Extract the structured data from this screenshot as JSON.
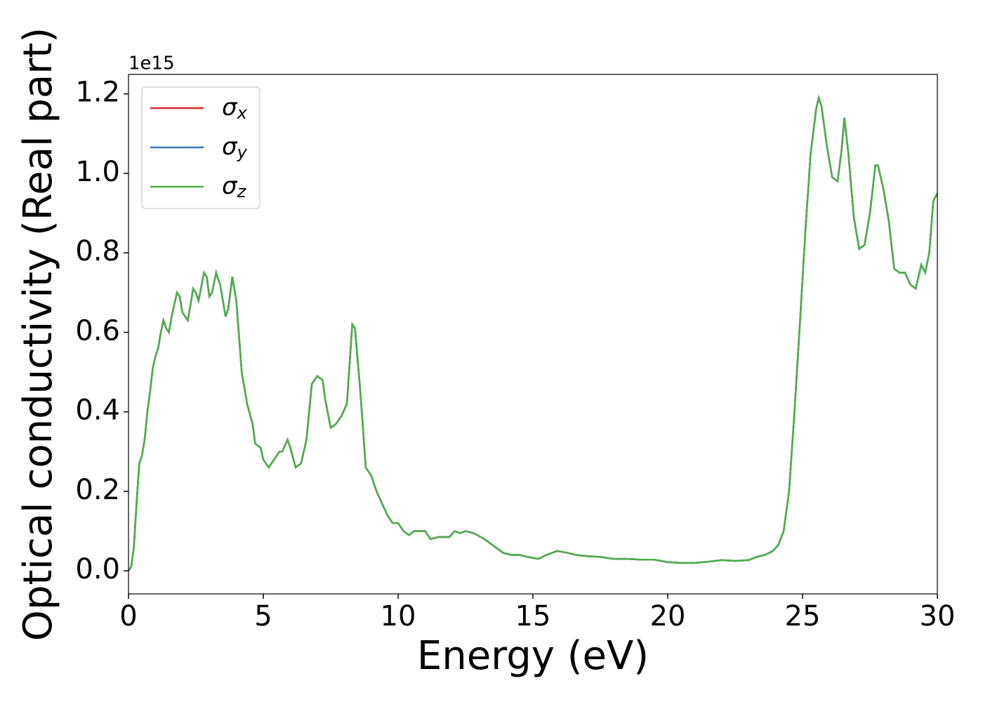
{
  "chart_data": {
    "type": "line",
    "x_label": "Energy (eV)",
    "y_label": "Optical conductivity (Real part)",
    "y_offset_label": "1e15",
    "x": [
      0,
      0.1,
      0.2,
      0.3,
      0.4,
      0.5,
      0.6,
      0.7,
      0.8,
      0.9,
      1.0,
      1.1,
      1.2,
      1.3,
      1.4,
      1.5,
      1.6,
      1.8,
      1.9,
      2.0,
      2.2,
      2.4,
      2.5,
      2.6,
      2.8,
      2.9,
      3.0,
      3.1,
      3.25,
      3.4,
      3.6,
      3.7,
      3.85,
      4.0,
      4.2,
      4.4,
      4.6,
      4.7,
      4.9,
      5.0,
      5.2,
      5.4,
      5.6,
      5.7,
      5.9,
      6.0,
      6.2,
      6.4,
      6.6,
      6.8,
      7.0,
      7.2,
      7.3,
      7.5,
      7.7,
      7.9,
      8.1,
      8.3,
      8.4,
      8.6,
      8.8,
      9.0,
      9.2,
      9.4,
      9.6,
      9.8,
      10.0,
      10.2,
      10.4,
      10.6,
      10.8,
      11.0,
      11.2,
      11.5,
      11.9,
      12.1,
      12.3,
      12.5,
      12.8,
      13.2,
      13.6,
      13.9,
      14.2,
      14.5,
      14.8,
      15.2,
      15.5,
      15.9,
      16.3,
      16.6,
      17.0,
      17.5,
      18.0,
      18.5,
      19.0,
      19.5,
      20.0,
      20.5,
      21.0,
      21.5,
      22.0,
      22.5,
      23.0,
      23.3,
      23.6,
      23.9,
      24.1,
      24.3,
      24.5,
      24.7,
      24.9,
      25.1,
      25.3,
      25.5,
      25.6,
      25.7,
      25.9,
      26.1,
      26.3,
      26.45,
      26.55,
      26.7,
      26.9,
      27.1,
      27.3,
      27.5,
      27.7,
      27.8,
      28.0,
      28.2,
      28.4,
      28.6,
      28.8,
      29.0,
      29.2,
      29.4,
      29.55,
      29.7,
      29.85,
      30.0
    ],
    "series": [
      {
        "name": "σx",
        "color": "#d62728",
        "values": [
          0,
          0.01,
          0.06,
          0.17,
          0.27,
          0.29,
          0.33,
          0.4,
          0.45,
          0.51,
          0.54,
          0.56,
          0.6,
          0.63,
          0.61,
          0.6,
          0.64,
          0.7,
          0.69,
          0.65,
          0.63,
          0.71,
          0.7,
          0.68,
          0.75,
          0.74,
          0.69,
          0.7,
          0.75,
          0.72,
          0.64,
          0.66,
          0.74,
          0.68,
          0.5,
          0.42,
          0.37,
          0.32,
          0.31,
          0.28,
          0.26,
          0.28,
          0.3,
          0.3,
          0.33,
          0.31,
          0.26,
          0.27,
          0.33,
          0.47,
          0.49,
          0.48,
          0.43,
          0.36,
          0.37,
          0.39,
          0.42,
          0.62,
          0.61,
          0.45,
          0.26,
          0.24,
          0.2,
          0.17,
          0.14,
          0.12,
          0.12,
          0.1,
          0.09,
          0.1,
          0.1,
          0.1,
          0.08,
          0.085,
          0.085,
          0.1,
          0.095,
          0.1,
          0.095,
          0.08,
          0.06,
          0.045,
          0.04,
          0.04,
          0.035,
          0.03,
          0.04,
          0.05,
          0.045,
          0.04,
          0.037,
          0.035,
          0.03,
          0.03,
          0.028,
          0.028,
          0.022,
          0.02,
          0.02,
          0.023,
          0.027,
          0.025,
          0.027,
          0.035,
          0.04,
          0.05,
          0.065,
          0.1,
          0.2,
          0.4,
          0.62,
          0.85,
          1.05,
          1.16,
          1.19,
          1.17,
          1.07,
          0.99,
          0.98,
          1.06,
          1.14,
          1.05,
          0.89,
          0.81,
          0.82,
          0.9,
          1.02,
          1.02,
          0.96,
          0.88,
          0.76,
          0.75,
          0.75,
          0.72,
          0.71,
          0.77,
          0.75,
          0.8,
          0.93,
          0.95
        ]
      },
      {
        "name": "σy",
        "color": "#3a7ab8",
        "values": [
          0,
          0.01,
          0.06,
          0.17,
          0.27,
          0.29,
          0.33,
          0.4,
          0.45,
          0.51,
          0.54,
          0.56,
          0.6,
          0.63,
          0.61,
          0.6,
          0.64,
          0.7,
          0.69,
          0.65,
          0.63,
          0.71,
          0.7,
          0.68,
          0.75,
          0.74,
          0.69,
          0.7,
          0.75,
          0.72,
          0.64,
          0.66,
          0.74,
          0.68,
          0.5,
          0.42,
          0.37,
          0.32,
          0.31,
          0.28,
          0.26,
          0.28,
          0.3,
          0.3,
          0.33,
          0.31,
          0.26,
          0.27,
          0.33,
          0.47,
          0.49,
          0.48,
          0.43,
          0.36,
          0.37,
          0.39,
          0.42,
          0.62,
          0.61,
          0.45,
          0.26,
          0.24,
          0.2,
          0.17,
          0.14,
          0.12,
          0.12,
          0.1,
          0.09,
          0.1,
          0.1,
          0.1,
          0.08,
          0.085,
          0.085,
          0.1,
          0.095,
          0.1,
          0.095,
          0.08,
          0.06,
          0.045,
          0.04,
          0.04,
          0.035,
          0.03,
          0.04,
          0.05,
          0.045,
          0.04,
          0.037,
          0.035,
          0.03,
          0.03,
          0.028,
          0.028,
          0.022,
          0.02,
          0.02,
          0.023,
          0.027,
          0.025,
          0.027,
          0.035,
          0.04,
          0.05,
          0.065,
          0.1,
          0.2,
          0.4,
          0.62,
          0.85,
          1.05,
          1.16,
          1.19,
          1.17,
          1.07,
          0.99,
          0.98,
          1.06,
          1.14,
          1.05,
          0.89,
          0.81,
          0.82,
          0.9,
          1.02,
          1.02,
          0.96,
          0.88,
          0.76,
          0.75,
          0.75,
          0.72,
          0.71,
          0.77,
          0.75,
          0.8,
          0.93,
          0.95
        ]
      },
      {
        "name": "σz",
        "color": "#4daf4a",
        "values": [
          0,
          0.01,
          0.06,
          0.17,
          0.27,
          0.29,
          0.33,
          0.4,
          0.45,
          0.51,
          0.54,
          0.56,
          0.6,
          0.63,
          0.61,
          0.6,
          0.64,
          0.7,
          0.69,
          0.65,
          0.63,
          0.71,
          0.7,
          0.68,
          0.75,
          0.74,
          0.69,
          0.7,
          0.75,
          0.72,
          0.64,
          0.66,
          0.74,
          0.68,
          0.5,
          0.42,
          0.37,
          0.32,
          0.31,
          0.28,
          0.26,
          0.28,
          0.3,
          0.3,
          0.33,
          0.31,
          0.26,
          0.27,
          0.33,
          0.47,
          0.49,
          0.48,
          0.43,
          0.36,
          0.37,
          0.39,
          0.42,
          0.62,
          0.61,
          0.45,
          0.26,
          0.24,
          0.2,
          0.17,
          0.14,
          0.12,
          0.12,
          0.1,
          0.09,
          0.1,
          0.1,
          0.1,
          0.08,
          0.085,
          0.085,
          0.1,
          0.095,
          0.1,
          0.095,
          0.08,
          0.06,
          0.045,
          0.04,
          0.04,
          0.035,
          0.03,
          0.04,
          0.05,
          0.045,
          0.04,
          0.037,
          0.035,
          0.03,
          0.03,
          0.028,
          0.028,
          0.022,
          0.02,
          0.02,
          0.023,
          0.027,
          0.025,
          0.027,
          0.035,
          0.04,
          0.05,
          0.065,
          0.1,
          0.2,
          0.4,
          0.62,
          0.85,
          1.05,
          1.16,
          1.19,
          1.17,
          1.07,
          0.99,
          0.98,
          1.06,
          1.14,
          1.05,
          0.89,
          0.81,
          0.82,
          0.9,
          1.02,
          1.02,
          0.96,
          0.88,
          0.76,
          0.75,
          0.75,
          0.72,
          0.71,
          0.77,
          0.75,
          0.8,
          0.93,
          0.95
        ]
      }
    ],
    "xlim": [
      0,
      30
    ],
    "xticks": [
      0,
      5,
      10,
      15,
      20,
      25,
      30
    ],
    "ylim": [
      -0.058,
      1.249
    ],
    "yticks": [
      {
        "value": 0,
        "label": "0.0"
      },
      0.2,
      0.4,
      0.6,
      0.8,
      {
        "value": 1,
        "label": "1.0"
      },
      1.2
    ],
    "grid": false,
    "legend": "upper left"
  }
}
